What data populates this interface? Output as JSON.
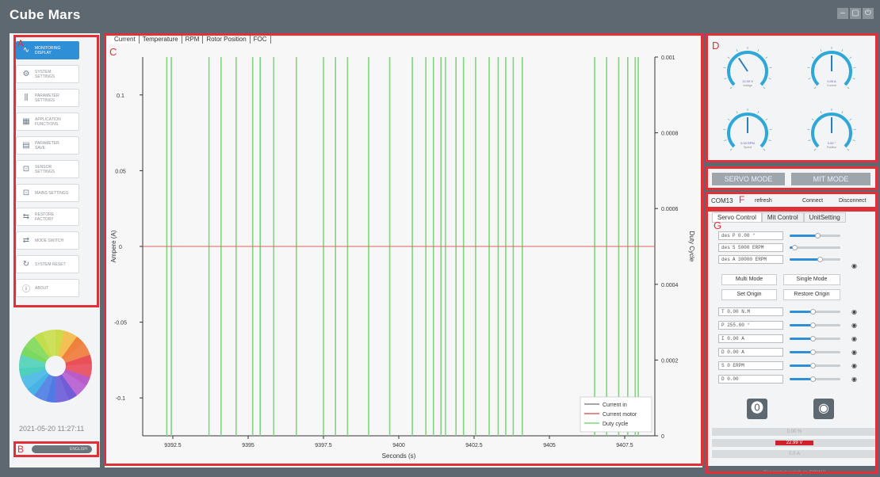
{
  "app": {
    "logo_c": "C",
    "logo_rest": "ube Mars"
  },
  "window": {
    "min": "–",
    "max": "▢",
    "close": "⏻"
  },
  "labels": {
    "a": "A",
    "b": "B",
    "c": "C",
    "d": "D",
    "e": "E",
    "f": "F",
    "g": "G"
  },
  "sidebar": {
    "items": [
      {
        "icon": "pulse-icon",
        "glyph": "∿",
        "label": "MONITORING DISPLAY",
        "active": true
      },
      {
        "icon": "gear-icon",
        "glyph": "⚙",
        "label": "SYSTEM SETTINGS",
        "active": false
      },
      {
        "icon": "sliders-icon",
        "glyph": "⫼",
        "label": "PARAMETER SETTINGS",
        "active": false
      },
      {
        "icon": "grid-icon",
        "glyph": "▦",
        "label": "APPLICATION FUNCTIONS",
        "active": false
      },
      {
        "icon": "list-icon",
        "glyph": "▤",
        "label": "PARAMETER SAVE",
        "active": false
      },
      {
        "icon": "chart-icon",
        "glyph": "⊡",
        "label": "SENSOR SETTINGS",
        "active": false
      },
      {
        "icon": "chart-icon",
        "glyph": "⊡",
        "label": "MAINS SETTINGS",
        "active": false
      },
      {
        "icon": "reset-icon",
        "glyph": "⇆",
        "label": "RESTORE FACTORY",
        "active": false
      },
      {
        "icon": "switch-icon",
        "glyph": "⇄",
        "label": "MODE SWITCH",
        "active": false
      },
      {
        "icon": "refresh-icon",
        "glyph": "↻",
        "label": "SYSTEM RESET",
        "active": false
      },
      {
        "icon": "info-icon",
        "glyph": "ⓘ",
        "label": "ABOUT",
        "active": false
      }
    ],
    "datetime": "2021-05-20 11:27:11",
    "language": "ENGLISH"
  },
  "tabs": [
    "Current",
    "Temperature",
    "RPM",
    "Rotor Position",
    "FOC"
  ],
  "chart_data": {
    "type": "line",
    "xlabel": "Seconds (s)",
    "ylabel": "Ampere (A)",
    "y2label": "Duty Cycle",
    "x_ticks": [
      "9392.5",
      "9395",
      "9397.5",
      "9400",
      "9402.5",
      "9405",
      "9407.5"
    ],
    "y_ticks": [
      "0.1",
      "0.05",
      "0",
      "-0.05",
      "-0.1"
    ],
    "y2_ticks": [
      "0.001",
      "0.0008",
      "0.0006",
      "0.0004",
      "0.0002",
      "0"
    ],
    "xlim": [
      9391.5,
      9408.5
    ],
    "ylim": [
      -0.125,
      0.125
    ],
    "y2lim": [
      0,
      0.001
    ],
    "grid": false,
    "legend_position": "bottom-right",
    "series": [
      {
        "name": "Current in",
        "color": "#888888",
        "values": []
      },
      {
        "name": "Current motor",
        "color": "#e06060",
        "values": [
          0,
          0
        ]
      },
      {
        "name": "Duty cycle",
        "color": "#7fd67f",
        "spike_x": [
          9392.3,
          9392.45,
          9393.7,
          9394.1,
          9394.6,
          9395.15,
          9395.4,
          9395.85,
          9396.6,
          9397.5,
          9397.9,
          9398.3,
          9399.0,
          9399.7,
          9400.45,
          9400.9,
          9401.15,
          9401.4,
          9401.55,
          9401.9,
          9402.15,
          9402.55,
          9403.0,
          9403.3,
          9403.55,
          9403.8,
          9404.1,
          9406.5,
          9406.9,
          9407.3,
          9407.6,
          9407.85,
          9407.95
        ]
      }
    ]
  },
  "gauges": [
    {
      "name": "voltage-gauge",
      "value": 0.375,
      "readout": "12.00 V",
      "caption": "Voltage"
    },
    {
      "name": "current-gauge",
      "value": 0.5,
      "readout": "0.00 A",
      "caption": "Current"
    },
    {
      "name": "speed-gauge",
      "value": 0.5,
      "readout": "0.00 RPM",
      "caption": "Speed"
    },
    {
      "name": "position-gauge",
      "value": 0.5,
      "readout": "0.00 °",
      "caption": "Position"
    }
  ],
  "modes": {
    "servo": "SERVO MODE",
    "mit": "MIT MODE"
  },
  "port": {
    "name": "COM13",
    "refresh": "refresh",
    "connect": "Connect",
    "disconnect": "Disconnect"
  },
  "servo_tabs": [
    "Servo Control",
    "Mit Control",
    "UnitSetting"
  ],
  "des": [
    {
      "label": "des",
      "value": "P 0.00 °",
      "fill": 0.55
    },
    {
      "label": "des",
      "value": "S 5000 ERPM",
      "fill": 0.1
    },
    {
      "label": "des",
      "value": "A 30000 ERPM",
      "fill": 0.6
    }
  ],
  "buttons": {
    "multi": "Multi Mode",
    "single": "Single Mode",
    "origin": "Set Origin",
    "restore": "Restore Origin"
  },
  "controls": [
    {
      "value": "T 0.00 N.M",
      "fill": 0.45
    },
    {
      "value": "P 255.00 °",
      "fill": 0.45
    },
    {
      "value": "I 0.00 A",
      "fill": 0.45
    },
    {
      "value": "D 0.00 A",
      "fill": 0.45
    },
    {
      "value": "S 0 ERPM",
      "fill": 0.45
    },
    {
      "value": "D 0.00",
      "fill": 0.45
    }
  ],
  "status": {
    "line1": "0.00 %",
    "line2": "22.99 V",
    "line3": "0.0 A",
    "connected": "Connected serially to COM13"
  },
  "colors": {
    "accent": "#2f8fd6",
    "highlight": "#e0303a",
    "duty": "#7fd67f"
  }
}
